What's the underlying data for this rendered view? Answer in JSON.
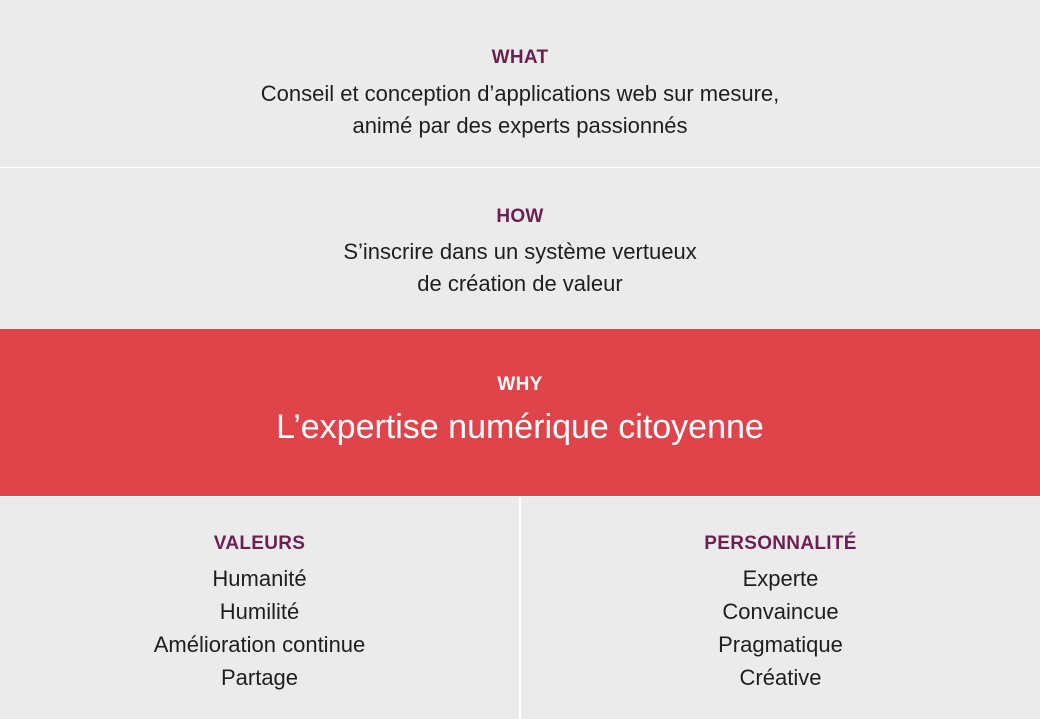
{
  "what": {
    "label": "WHAT",
    "lines": [
      "Conseil et conception d’applications web sur mesure,",
      "animé par des experts passionnés"
    ]
  },
  "how": {
    "label": "HOW",
    "lines": [
      "S’inscrire dans un système vertueux",
      "de création de valeur"
    ]
  },
  "why": {
    "label": "WHY",
    "headline": "L’expertise numérique citoyenne",
    "background_color": "#e0444b"
  },
  "valeurs": {
    "label": "VALEURS",
    "items": [
      "Humanité",
      "Humilité",
      "Amélioration continue",
      "Partage"
    ]
  },
  "personnalite": {
    "label": "PERSONNALITÉ",
    "items": [
      "Experte",
      "Convaincue",
      "Pragmatique",
      "Créative"
    ]
  },
  "colors": {
    "label": "#6d1f52",
    "panel": "#ebebeb",
    "text": "#1e1e1e"
  }
}
